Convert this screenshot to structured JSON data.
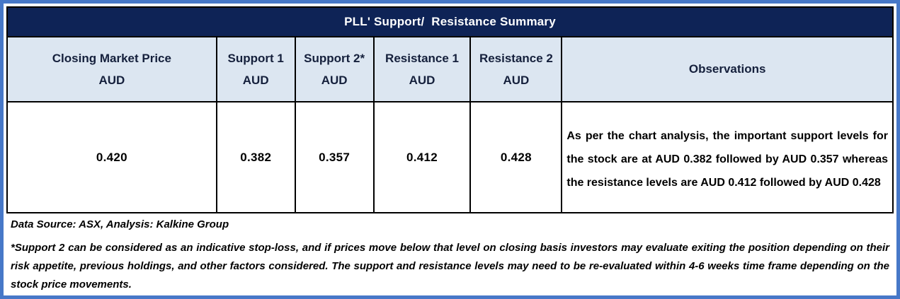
{
  "title": "PLL' Support/  Resistance Summary",
  "table": {
    "columns": [
      {
        "label": "Closing Market Price",
        "unit": "AUD"
      },
      {
        "label": "Support 1",
        "unit": "AUD"
      },
      {
        "label": "Support 2*",
        "unit": "AUD"
      },
      {
        "label": "Resistance 1",
        "unit": "AUD"
      },
      {
        "label": "Resistance 2",
        "unit": "AUD"
      },
      {
        "label": "Observations",
        "unit": ""
      }
    ],
    "row": {
      "closing_price": "0.420",
      "support_1": "0.382",
      "support_2": "0.357",
      "resistance_1": "0.412",
      "resistance_2": "0.428",
      "observation": "As per the chart analysis, the important support levels for the stock are at AUD 0.382 followed by AUD 0.357 whereas the resistance levels are AUD 0.412 followed by AUD 0.428"
    }
  },
  "footer": {
    "data_source": "Data Source: ASX, Analysis: Kalkine Group",
    "footnote": "*Support 2 can be considered as an indicative stop-loss, and if prices move below that level on closing basis investors may evaluate exiting the position depending on their risk appetite, previous holdings, and other factors considered. The support and resistance levels may need to be re-evaluated within 4-6 weeks time frame depending on the stock price movements."
  },
  "colors": {
    "frame_border": "#4778C8",
    "title_background": "#0E2356",
    "title_text": "#FFFFFF",
    "header_background": "#DCE6F1",
    "header_text": "#15203C",
    "cell_border": "#000000",
    "body_text": "#000000"
  }
}
